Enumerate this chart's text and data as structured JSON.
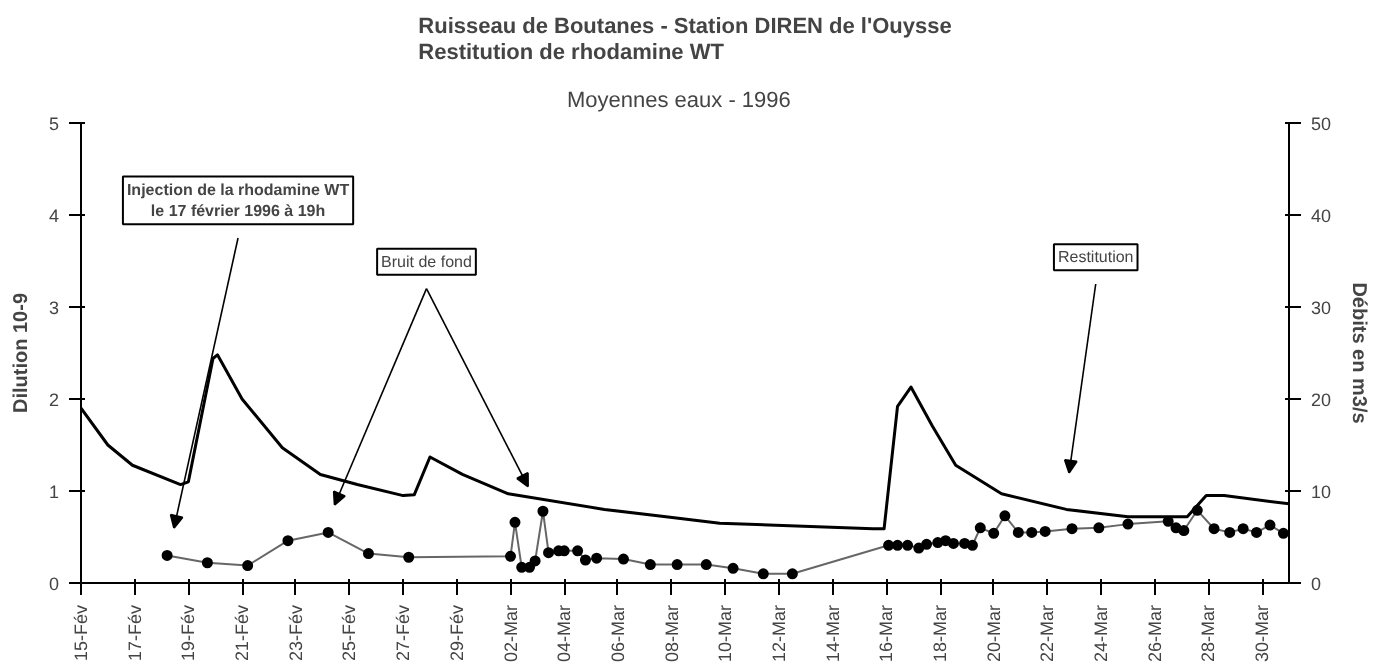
{
  "chart_data": {
    "type": "line",
    "title": "Ruisseau de Boutanes - Station DIREN de l'Ouysse\nRestitution de rhodamine WT",
    "subtitle": "Moyennes eaux  -  1996",
    "ylabel": "Dilution 10-9",
    "y2label": "Débits en m3/s",
    "xlim": [
      "1996-02-15",
      "1996-03-31"
    ],
    "xticks": [
      {
        "value": "1996-02-15",
        "label": "15-Fév"
      },
      {
        "value": "1996-02-17",
        "label": "17-Fév"
      },
      {
        "value": "1996-02-19",
        "label": "19-Fév"
      },
      {
        "value": "1996-02-21",
        "label": "21-Fév"
      },
      {
        "value": "1996-02-23",
        "label": "23-Fév"
      },
      {
        "value": "1996-02-25",
        "label": "25-Fév"
      },
      {
        "value": "1996-02-27",
        "label": "27-Fév"
      },
      {
        "value": "1996-02-29",
        "label": "29-Fév"
      },
      {
        "value": "1996-03-02",
        "label": "02-Mar"
      },
      {
        "value": "1996-03-04",
        "label": "04-Mar"
      },
      {
        "value": "1996-03-06",
        "label": "06-Mar"
      },
      {
        "value": "1996-03-08",
        "label": "08-Mar"
      },
      {
        "value": "1996-03-10",
        "label": "10-Mar"
      },
      {
        "value": "1996-03-12",
        "label": "12-Mar"
      },
      {
        "value": "1996-03-14",
        "label": "14-Mar"
      },
      {
        "value": "1996-03-16",
        "label": "16-Mar"
      },
      {
        "value": "1996-03-18",
        "label": "18-Mar"
      },
      {
        "value": "1996-03-20",
        "label": "20-Mar"
      },
      {
        "value": "1996-03-22",
        "label": "22-Mar"
      },
      {
        "value": "1996-03-24",
        "label": "24-Mar"
      },
      {
        "value": "1996-03-26",
        "label": "26-Mar"
      },
      {
        "value": "1996-03-28",
        "label": "28-Mar"
      },
      {
        "value": "1996-03-30",
        "label": "30-Mar"
      }
    ],
    "ylim": [
      0,
      5
    ],
    "yticks": [
      0,
      1,
      2,
      3,
      4,
      5
    ],
    "y2lim": [
      0,
      50
    ],
    "y2ticks": [
      0,
      10,
      20,
      30,
      40,
      50
    ],
    "grid": false,
    "series": [
      {
        "color": "#000000",
        "axis": "y2",
        "marker": "none",
        "x": [
          "1996-02-15T00:00",
          "1996-02-16T00:00",
          "1996-02-16T22:00",
          "1996-02-18T17:00",
          "1996-02-19T00:00",
          "1996-02-19T22:00",
          "1996-02-20T02:00",
          "1996-02-21T00:00",
          "1996-02-22T12:00",
          "1996-02-23T22:00",
          "1996-02-25T07:00",
          "1996-02-27T00:00",
          "1996-02-27T10:00",
          "1996-02-28T00:00",
          "1996-02-29T05:00",
          "1996-03-01T22:00",
          "1996-03-05T12:00",
          "1996-03-07T19:00",
          "1996-03-09T19:00",
          "1996-03-15T12:00",
          "1996-03-15T22:00",
          "1996-03-16T10:00",
          "1996-03-16T22:00",
          "1996-03-17T17:00",
          "1996-03-18T14:00",
          "1996-03-20T07:00",
          "1996-03-22T17:00",
          "1996-03-25T00:00",
          "1996-03-27T05:00",
          "1996-03-27T22:00",
          "1996-03-28T14:00",
          "1996-03-31T00:00"
        ],
        "values": [
          19,
          15,
          12.8,
          10.7,
          11,
          24.4,
          24.8,
          20,
          14.7,
          11.8,
          10.7,
          9.5,
          9.6,
          13.7,
          11.8,
          9.7,
          8,
          7.2,
          6.5,
          5.9,
          5.9,
          19.2,
          21.3,
          17.1,
          12.8,
          9.7,
          8,
          7.2,
          7.2,
          9.5,
          9.5,
          8.6
        ]
      },
      {
        "color": "#000000",
        "marker": "circle",
        "x": [
          "1996-02-18T05:00",
          "1996-02-19T17:00",
          "1996-02-21T05:00",
          "1996-02-22T17:00",
          "1996-02-24T05:00",
          "1996-02-25T17:00",
          "1996-02-27T05:00",
          "1996-03-02T00:00",
          "1996-03-02T04:00",
          "1996-03-02T10:00",
          "1996-03-02T17:00",
          "1996-03-02T22:00",
          "1996-03-03T05:00",
          "1996-03-03T10:00",
          "1996-03-03T19:00",
          "1996-03-04T00:00",
          "1996-03-04T12:00",
          "1996-03-04T19:00",
          "1996-03-05T05:00",
          "1996-03-06T05:00",
          "1996-03-07T05:00",
          "1996-03-08T05:00",
          "1996-03-09T07:00",
          "1996-03-10T07:00",
          "1996-03-11T10:00",
          "1996-03-12T12:00",
          "1996-03-16T02:00",
          "1996-03-16T10:00",
          "1996-03-16T19:00",
          "1996-03-17T05:00",
          "1996-03-17T12:00",
          "1996-03-17T22:00",
          "1996-03-18T05:00",
          "1996-03-18T12:00",
          "1996-03-18T22:00",
          "1996-03-19T05:00",
          "1996-03-19T12:00",
          "1996-03-20T00:00",
          "1996-03-20T10:00",
          "1996-03-20T22:00",
          "1996-03-21T10:00",
          "1996-03-21T22:00",
          "1996-03-22T22:00",
          "1996-03-23T22:00",
          "1996-03-25T00:00",
          "1996-03-26T12:00",
          "1996-03-26T19:00",
          "1996-03-27T02:00",
          "1996-03-27T14:00",
          "1996-03-28T05:00",
          "1996-03-28T19:00",
          "1996-03-29T07:00",
          "1996-03-29T19:00",
          "1996-03-30T07:00",
          "1996-03-30T19:00"
        ],
        "values": [
          0.3,
          0.22,
          0.19,
          0.46,
          0.55,
          0.32,
          0.28,
          0.29,
          0.66,
          0.17,
          0.17,
          0.24,
          0.78,
          0.33,
          0.35,
          0.35,
          0.35,
          0.25,
          0.27,
          0.26,
          0.2,
          0.2,
          0.2,
          0.16,
          0.1,
          0.1,
          0.41,
          0.41,
          0.41,
          0.38,
          0.42,
          0.44,
          0.46,
          0.43,
          0.43,
          0.41,
          0.6,
          0.54,
          0.73,
          0.55,
          0.55,
          0.56,
          0.59,
          0.6,
          0.64,
          0.67,
          0.6,
          0.57,
          0.79,
          0.59,
          0.55,
          0.59,
          0.55,
          0.63,
          0.54
        ]
      }
    ],
    "annotations": [
      "Injection de la rhodamine WT\nle 17 février 1996 à 19h",
      "Bruit de fond",
      "Restitution"
    ]
  }
}
